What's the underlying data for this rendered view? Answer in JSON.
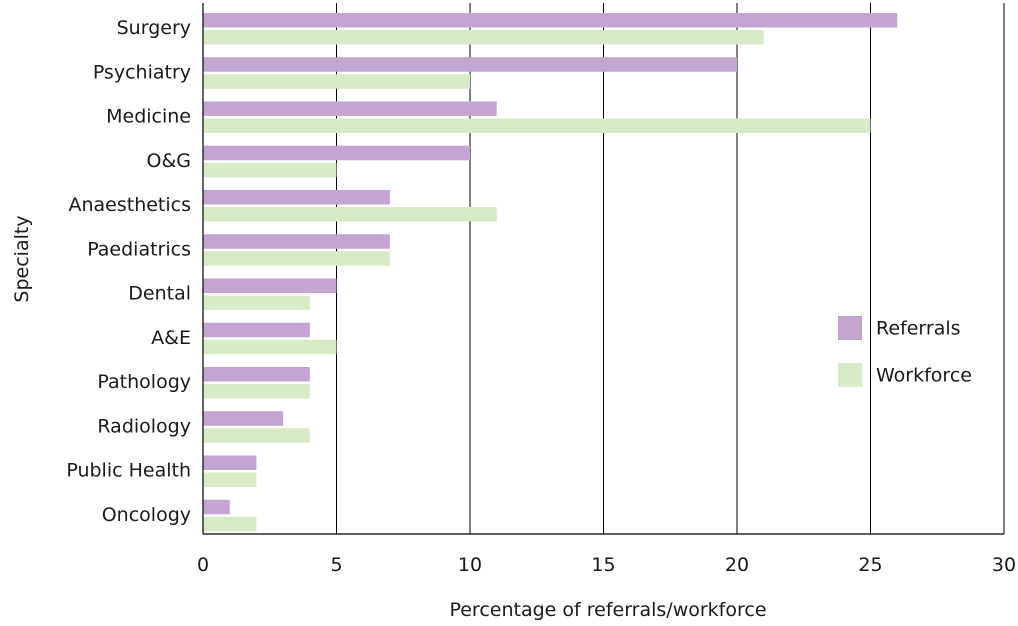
{
  "chart_data": {
    "type": "bar",
    "orientation": "horizontal",
    "title": "",
    "xlabel": "Percentage of referrals/workforce",
    "ylabel": "Specialty",
    "xlim": [
      0,
      30
    ],
    "xticks": [
      0,
      5,
      10,
      15,
      20,
      25,
      30
    ],
    "grid": true,
    "legend_position": "right",
    "categories": [
      "Surgery",
      "Psychiatry",
      "Medicine",
      "O&G",
      "Anaesthetics",
      "Paediatrics",
      "Dental",
      "A&E",
      "Pathology",
      "Radiology",
      "Public Health",
      "Oncology"
    ],
    "series": [
      {
        "name": "Referrals",
        "color": "#c2a6d1",
        "values": [
          26,
          20,
          11,
          10,
          7,
          7,
          5,
          4,
          4,
          3,
          2,
          1
        ]
      },
      {
        "name": "Workforce",
        "color": "#d8eac8",
        "values": [
          21,
          10,
          25,
          5,
          11,
          7,
          4,
          5,
          4,
          4,
          2,
          2
        ]
      }
    ]
  }
}
